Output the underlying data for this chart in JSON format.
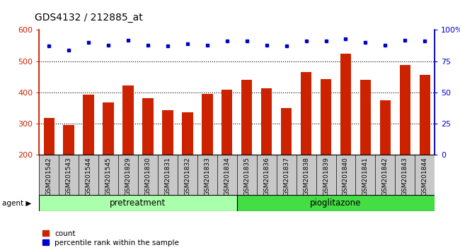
{
  "title": "GDS4132 / 212885_at",
  "categories": [
    "GSM201542",
    "GSM201543",
    "GSM201544",
    "GSM201545",
    "GSM201829",
    "GSM201830",
    "GSM201831",
    "GSM201832",
    "GSM201833",
    "GSM201834",
    "GSM201835",
    "GSM201836",
    "GSM201837",
    "GSM201838",
    "GSM201839",
    "GSM201840",
    "GSM201841",
    "GSM201842",
    "GSM201843",
    "GSM201844"
  ],
  "counts": [
    318,
    295,
    393,
    368,
    422,
    382,
    343,
    337,
    395,
    409,
    441,
    413,
    350,
    466,
    443,
    524,
    441,
    375,
    488,
    456
  ],
  "percentiles": [
    87,
    84,
    90,
    88,
    92,
    88,
    87,
    89,
    88,
    91,
    91,
    88,
    87,
    91,
    91,
    93,
    90,
    88,
    92,
    91
  ],
  "bar_color": "#cc2200",
  "dot_color": "#0000cc",
  "ylim_left": [
    200,
    600
  ],
  "ylim_right": [
    0,
    100
  ],
  "yticks_left": [
    200,
    300,
    400,
    500,
    600
  ],
  "yticks_right": [
    0,
    25,
    50,
    75,
    100
  ],
  "ytick_labels_right": [
    "0",
    "25",
    "50",
    "75",
    "100%"
  ],
  "group1_label": "pretreatment",
  "group2_label": "pioglitazone",
  "group1_count": 10,
  "group2_count": 10,
  "agent_label": "agent",
  "legend_count_label": "count",
  "legend_percentile_label": "percentile rank within the sample",
  "bar_width": 0.55,
  "background_color": "#ffffff",
  "plot_bg_color": "#ffffff",
  "tick_area_bg": "#c8c8c8",
  "group1_bg": "#aaffaa",
  "group2_bg": "#44dd44",
  "title_fontsize": 10,
  "tick_label_fontsize": 6.5,
  "axis_label_fontsize": 8,
  "hgrid_color": "#000000",
  "hgrid_vals": [
    300,
    400,
    500
  ]
}
